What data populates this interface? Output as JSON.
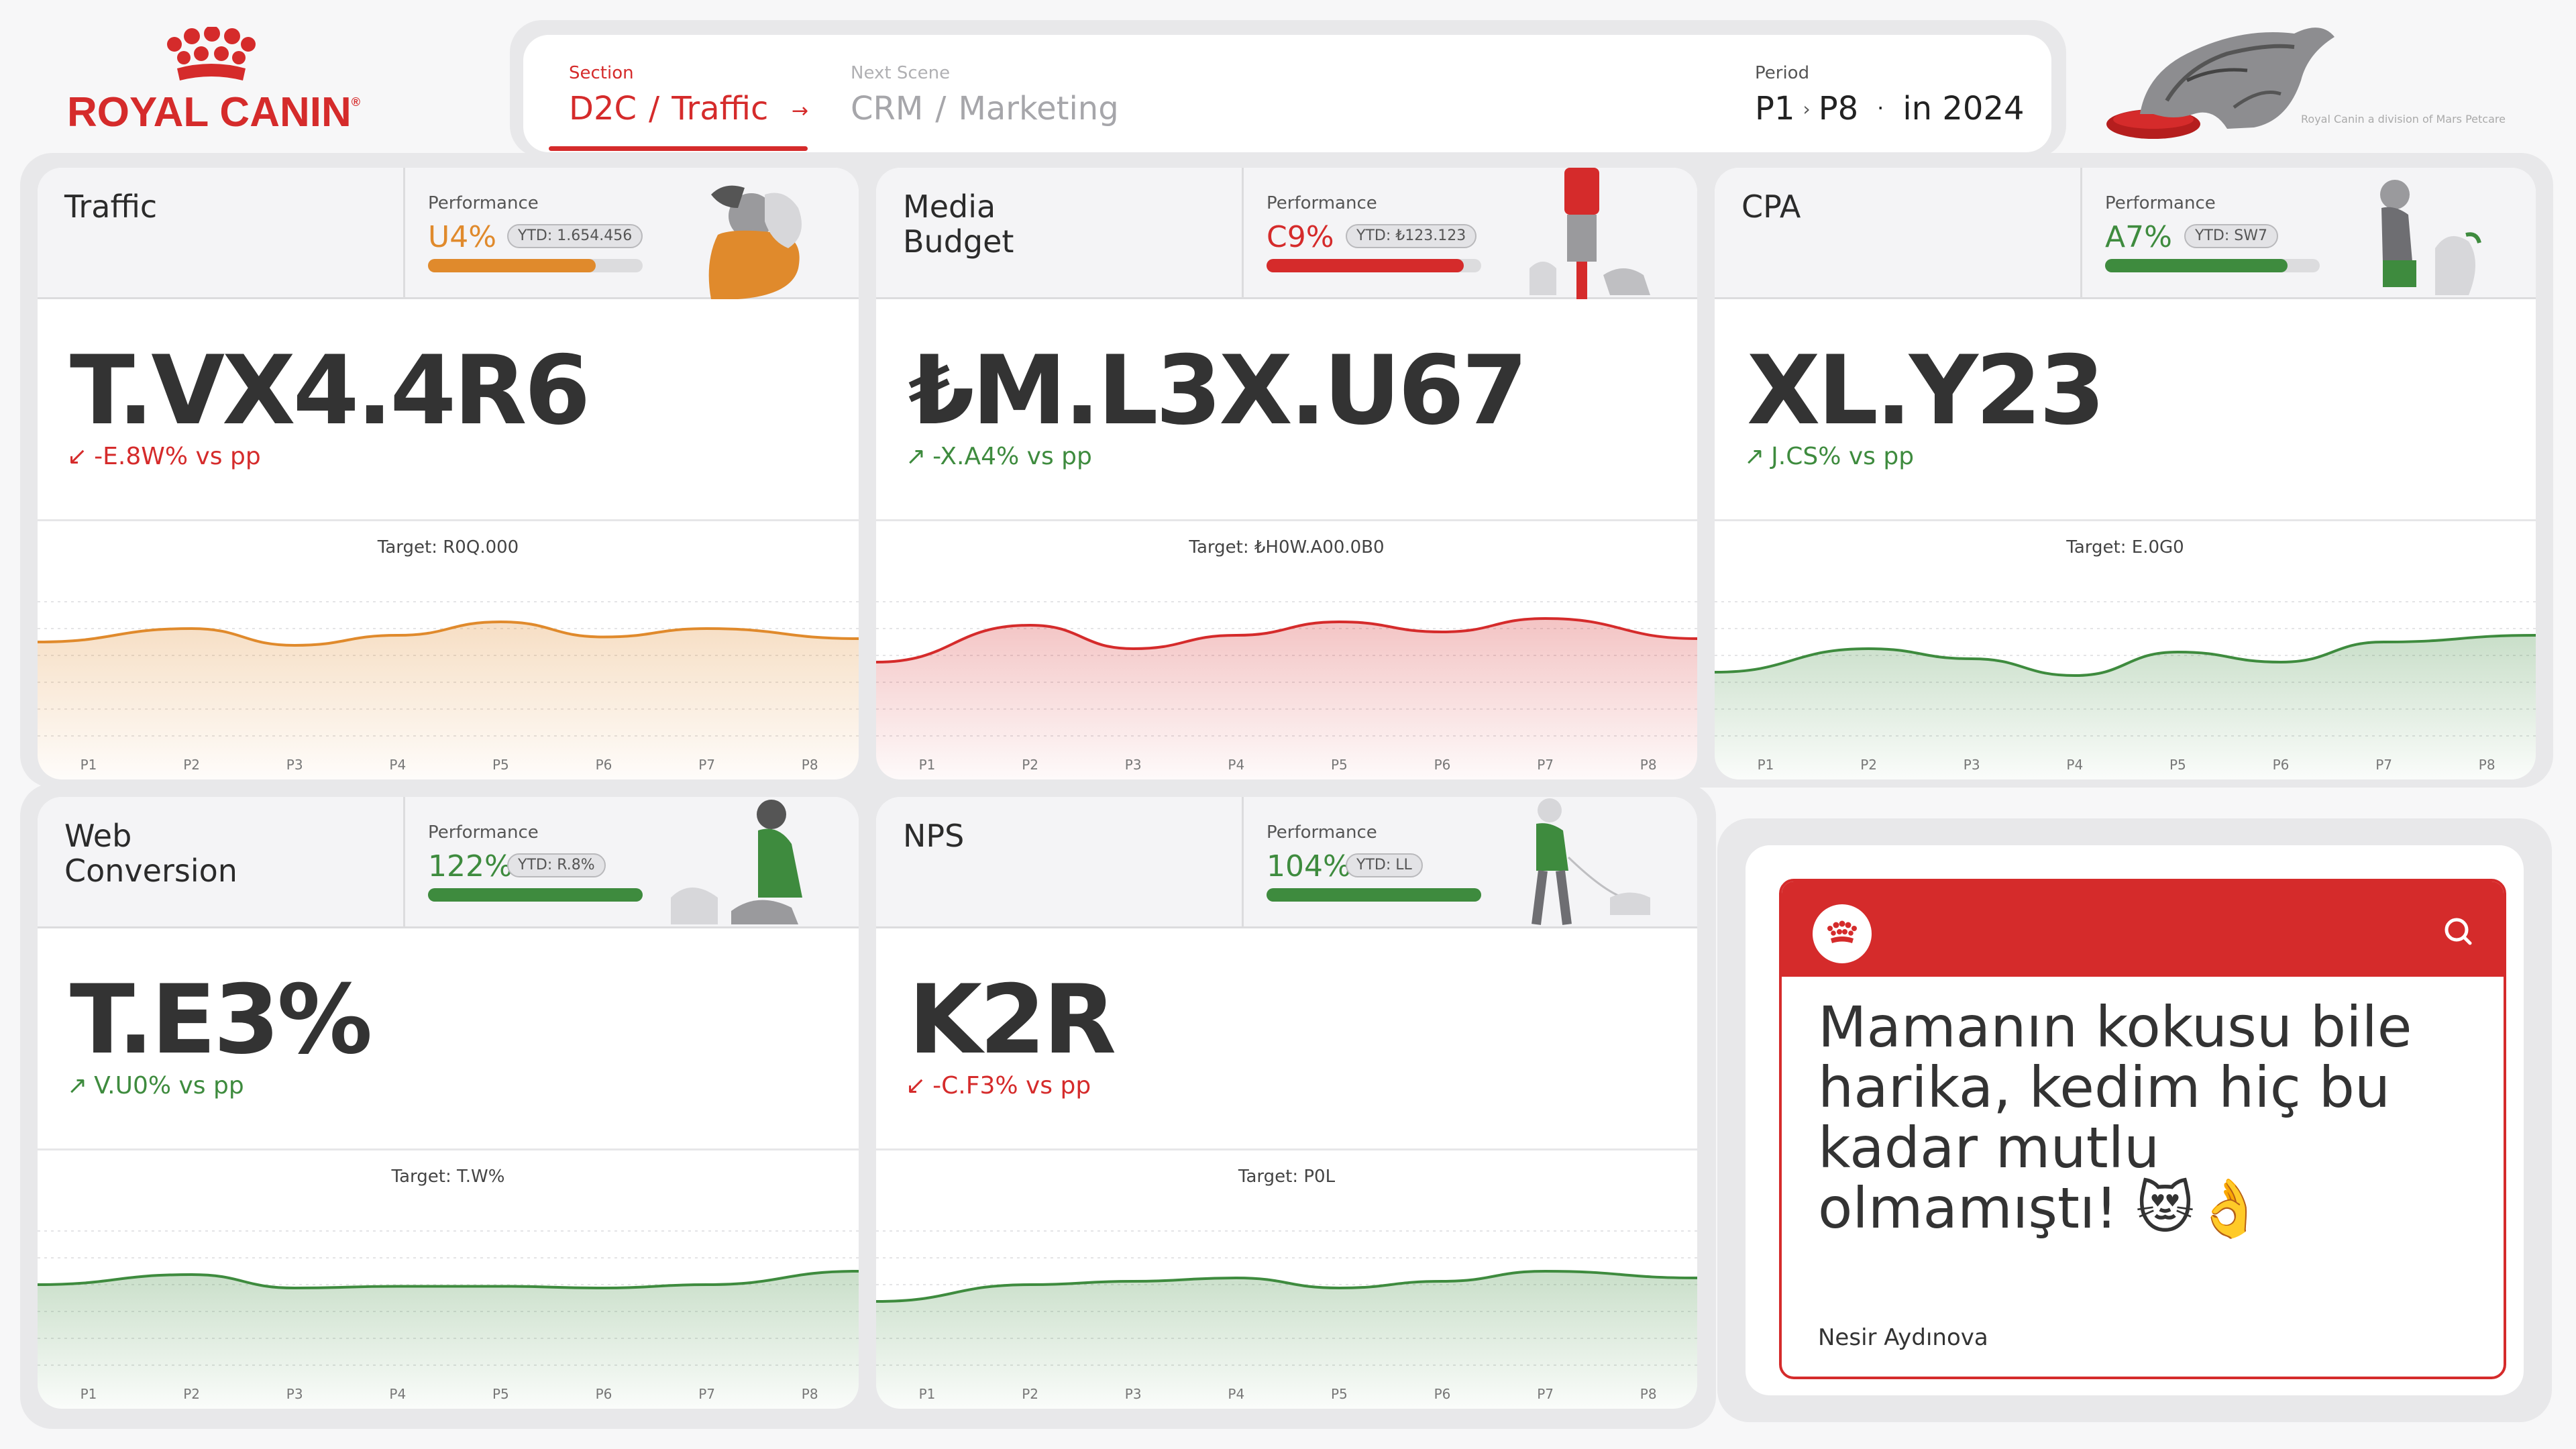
{
  "brand": {
    "name": "ROYAL CANIN",
    "color": "#d52b2b"
  },
  "header": {
    "section": {
      "label": "Section",
      "parts": [
        "D2C",
        "Traffic"
      ]
    },
    "next_scene": {
      "label": "Next Scene",
      "parts": [
        "CRM",
        "Marketing"
      ]
    },
    "period": {
      "label": "Period",
      "from": "P1",
      "to": "P8",
      "year_text": "in 2024"
    },
    "cat_caption": "Royal Canin a division of Mars Petcare"
  },
  "colors": {
    "orange": "#e08a2c",
    "red": "#d52b2b",
    "green": "#3e8b3e"
  },
  "cards": [
    {
      "title": "Traffic",
      "perf_label": "Performance",
      "perf_value": "U4%",
      "ytd": "YTD: 1.654.456",
      "perf_fill": 0.78,
      "accent": "orange",
      "illustration": "woman-hugging-dog-illustration",
      "kpi": "T.VX4.4R6",
      "delta": "-E.8W% vs pp",
      "delta_dir": "down",
      "target": "Target: R0Q.000",
      "chart_data": {
        "type": "area",
        "categories": [
          "P1",
          "P2",
          "P3",
          "P4",
          "P5",
          "P6",
          "P7",
          "P8"
        ],
        "values": [
          60,
          68,
          58,
          64,
          72,
          63,
          68,
          62
        ],
        "ylim": [
          0,
          100
        ]
      }
    },
    {
      "title": "Media\nBudget",
      "perf_label": "Performance",
      "perf_value": "C9%",
      "ytd": "YTD: ₺123.123",
      "perf_fill": 0.92,
      "accent": "red",
      "illustration": "woman-with-cats-illustration",
      "kpi": "₺M.L3X.U67",
      "delta": "-X.A4% vs pp",
      "delta_dir": "up",
      "target": "Target: ₺H0W.A00.0B0",
      "chart_data": {
        "type": "area",
        "categories": [
          "P1",
          "P2",
          "P3",
          "P4",
          "P5",
          "P6",
          "P7",
          "P8"
        ],
        "values": [
          48,
          70,
          56,
          64,
          72,
          66,
          74,
          62
        ],
        "ylim": [
          0,
          100
        ]
      }
    },
    {
      "title": "CPA",
      "perf_label": "Performance",
      "perf_value": "A7%",
      "ytd": "YTD: SW7",
      "perf_fill": 0.85,
      "accent": "green",
      "illustration": "woman-kneeling-dog-illustration",
      "kpi": "XL.Y23",
      "delta": "J.CS% vs pp",
      "delta_dir": "up",
      "target": "Target: E.0G0",
      "chart_data": {
        "type": "area",
        "categories": [
          "P1",
          "P2",
          "P3",
          "P4",
          "P5",
          "P6",
          "P7",
          "P8"
        ],
        "values": [
          42,
          56,
          50,
          40,
          54,
          48,
          60,
          64
        ],
        "ylim": [
          0,
          100
        ]
      }
    },
    {
      "title": "Web\nConversion",
      "perf_label": "Performance",
      "perf_value": "122%",
      "ytd": "YTD: R.8%",
      "perf_fill": 1.0,
      "accent": "green",
      "illustration": "woman-sitting-cats-illustration",
      "kpi": "T.E3%",
      "delta": "V.U0% vs pp",
      "delta_dir": "up",
      "target": "Target: T.W%",
      "chart_data": {
        "type": "area",
        "categories": [
          "P1",
          "P2",
          "P3",
          "P4",
          "P5",
          "P6",
          "P7",
          "P8"
        ],
        "values": [
          52,
          58,
          50,
          51,
          51,
          50,
          52,
          60
        ],
        "ylim": [
          0,
          100
        ]
      }
    },
    {
      "title": "NPS",
      "perf_label": "Performance",
      "perf_value": "104%",
      "ytd": "YTD: LL",
      "perf_fill": 1.0,
      "accent": "green",
      "illustration": "woman-walking-dog-illustration",
      "kpi": "K2R",
      "delta": "-C.F3% vs pp",
      "delta_dir": "down",
      "target": "Target: P0L",
      "chart_data": {
        "type": "area",
        "categories": [
          "P1",
          "P2",
          "P3",
          "P4",
          "P5",
          "P6",
          "P7",
          "P8"
        ],
        "values": [
          42,
          52,
          54,
          56,
          50,
          54,
          60,
          56
        ],
        "ylim": [
          0,
          100
        ]
      }
    }
  ],
  "review": {
    "text": "Mamanın kokusu bile harika, kedim hiç bu kadar mutlu olmamıştı! 😻👌",
    "author": "Nesir Aydınova"
  }
}
